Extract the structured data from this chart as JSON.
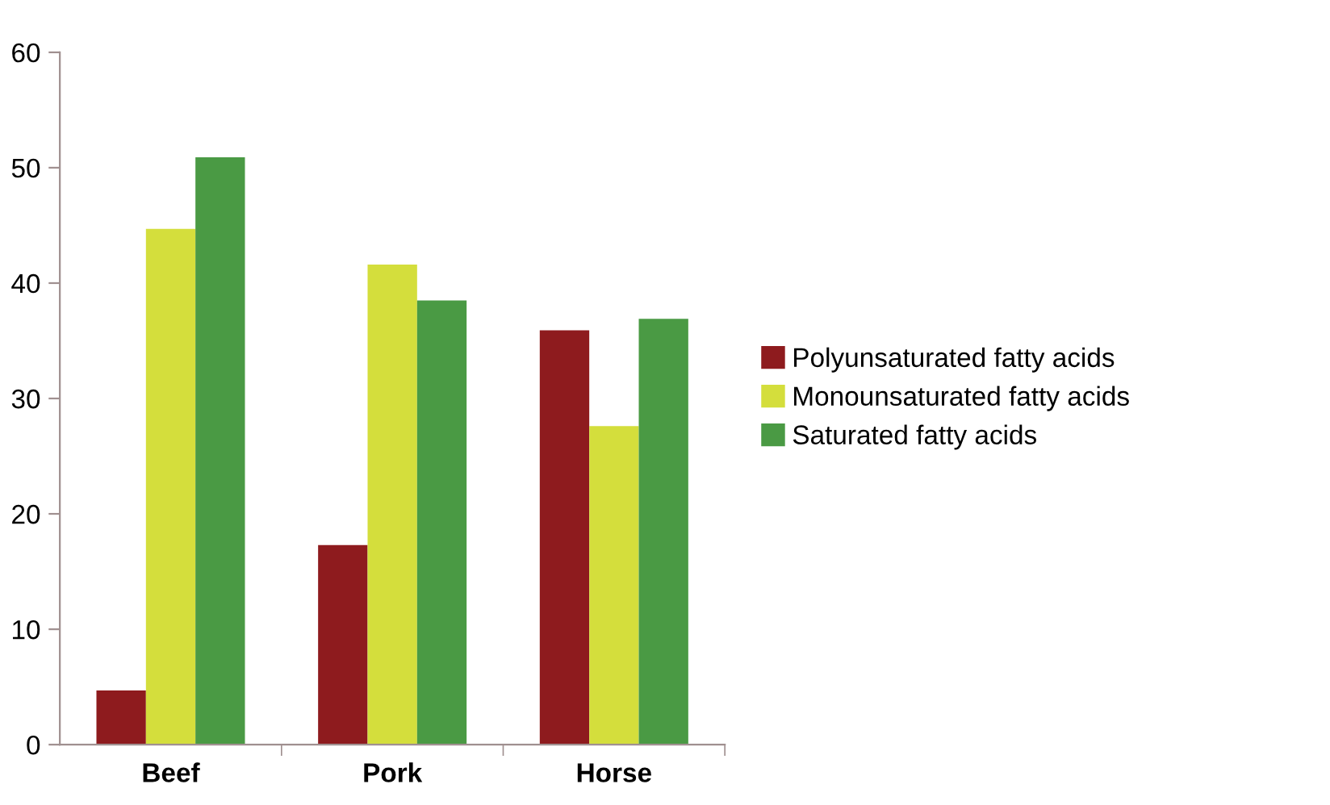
{
  "chart_data": {
    "type": "bar",
    "categories": [
      "Beef",
      "Pork",
      "Horse"
    ],
    "series": [
      {
        "name": "Polyunsaturated fatty acids",
        "color": "#8e1b1e",
        "values": [
          4.7,
          17.3,
          35.9
        ]
      },
      {
        "name": "Monounsaturated fatty acids",
        "color": "#d4de3c",
        "values": [
          44.7,
          41.6,
          27.6
        ]
      },
      {
        "name": "Saturated fatty acids",
        "color": "#4a9a44",
        "values": [
          50.9,
          38.5,
          36.9
        ]
      }
    ],
    "ylim": [
      0,
      60
    ],
    "yticks": [
      0,
      10,
      20,
      30,
      40,
      50,
      60
    ],
    "grid": false,
    "legend": "right"
  }
}
